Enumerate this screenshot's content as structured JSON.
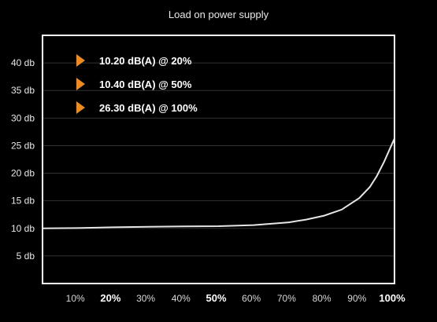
{
  "chart_data": {
    "type": "line",
    "title": "Load on power supply",
    "xlabel": "",
    "ylabel": "",
    "x_categories": [
      "10%",
      "20%",
      "30%",
      "40%",
      "50%",
      "60%",
      "70%",
      "80%",
      "90%",
      "100%"
    ],
    "x_bold": [
      "20%",
      "50%",
      "100%"
    ],
    "y_ticks": [
      "5 db",
      "10 db",
      "15 db",
      "20 db",
      "25 db",
      "30 db",
      "35 db",
      "40 db"
    ],
    "ylim": [
      0,
      45
    ],
    "grid": true,
    "series": [
      {
        "x": [
          0,
          10,
          20,
          30,
          40,
          50,
          60,
          70,
          75,
          80,
          85,
          90,
          93,
          95,
          97,
          100
        ],
        "values": [
          10.0,
          10.05,
          10.2,
          10.3,
          10.35,
          10.4,
          10.6,
          11.1,
          11.6,
          12.3,
          13.4,
          15.5,
          17.5,
          19.5,
          22.0,
          26.3
        ]
      }
    ],
    "annotations": [
      {
        "text": "10.20 dB(A) @ 20%"
      },
      {
        "text": "10.40 dB(A) @ 50%"
      },
      {
        "text": "26.30 dB(A) @ 100%"
      }
    ],
    "colors": {
      "background": "#000000",
      "line": "#e6e6e6",
      "grid": "#333333",
      "frame": "#ffffff",
      "marker": "#f08a1c"
    }
  }
}
